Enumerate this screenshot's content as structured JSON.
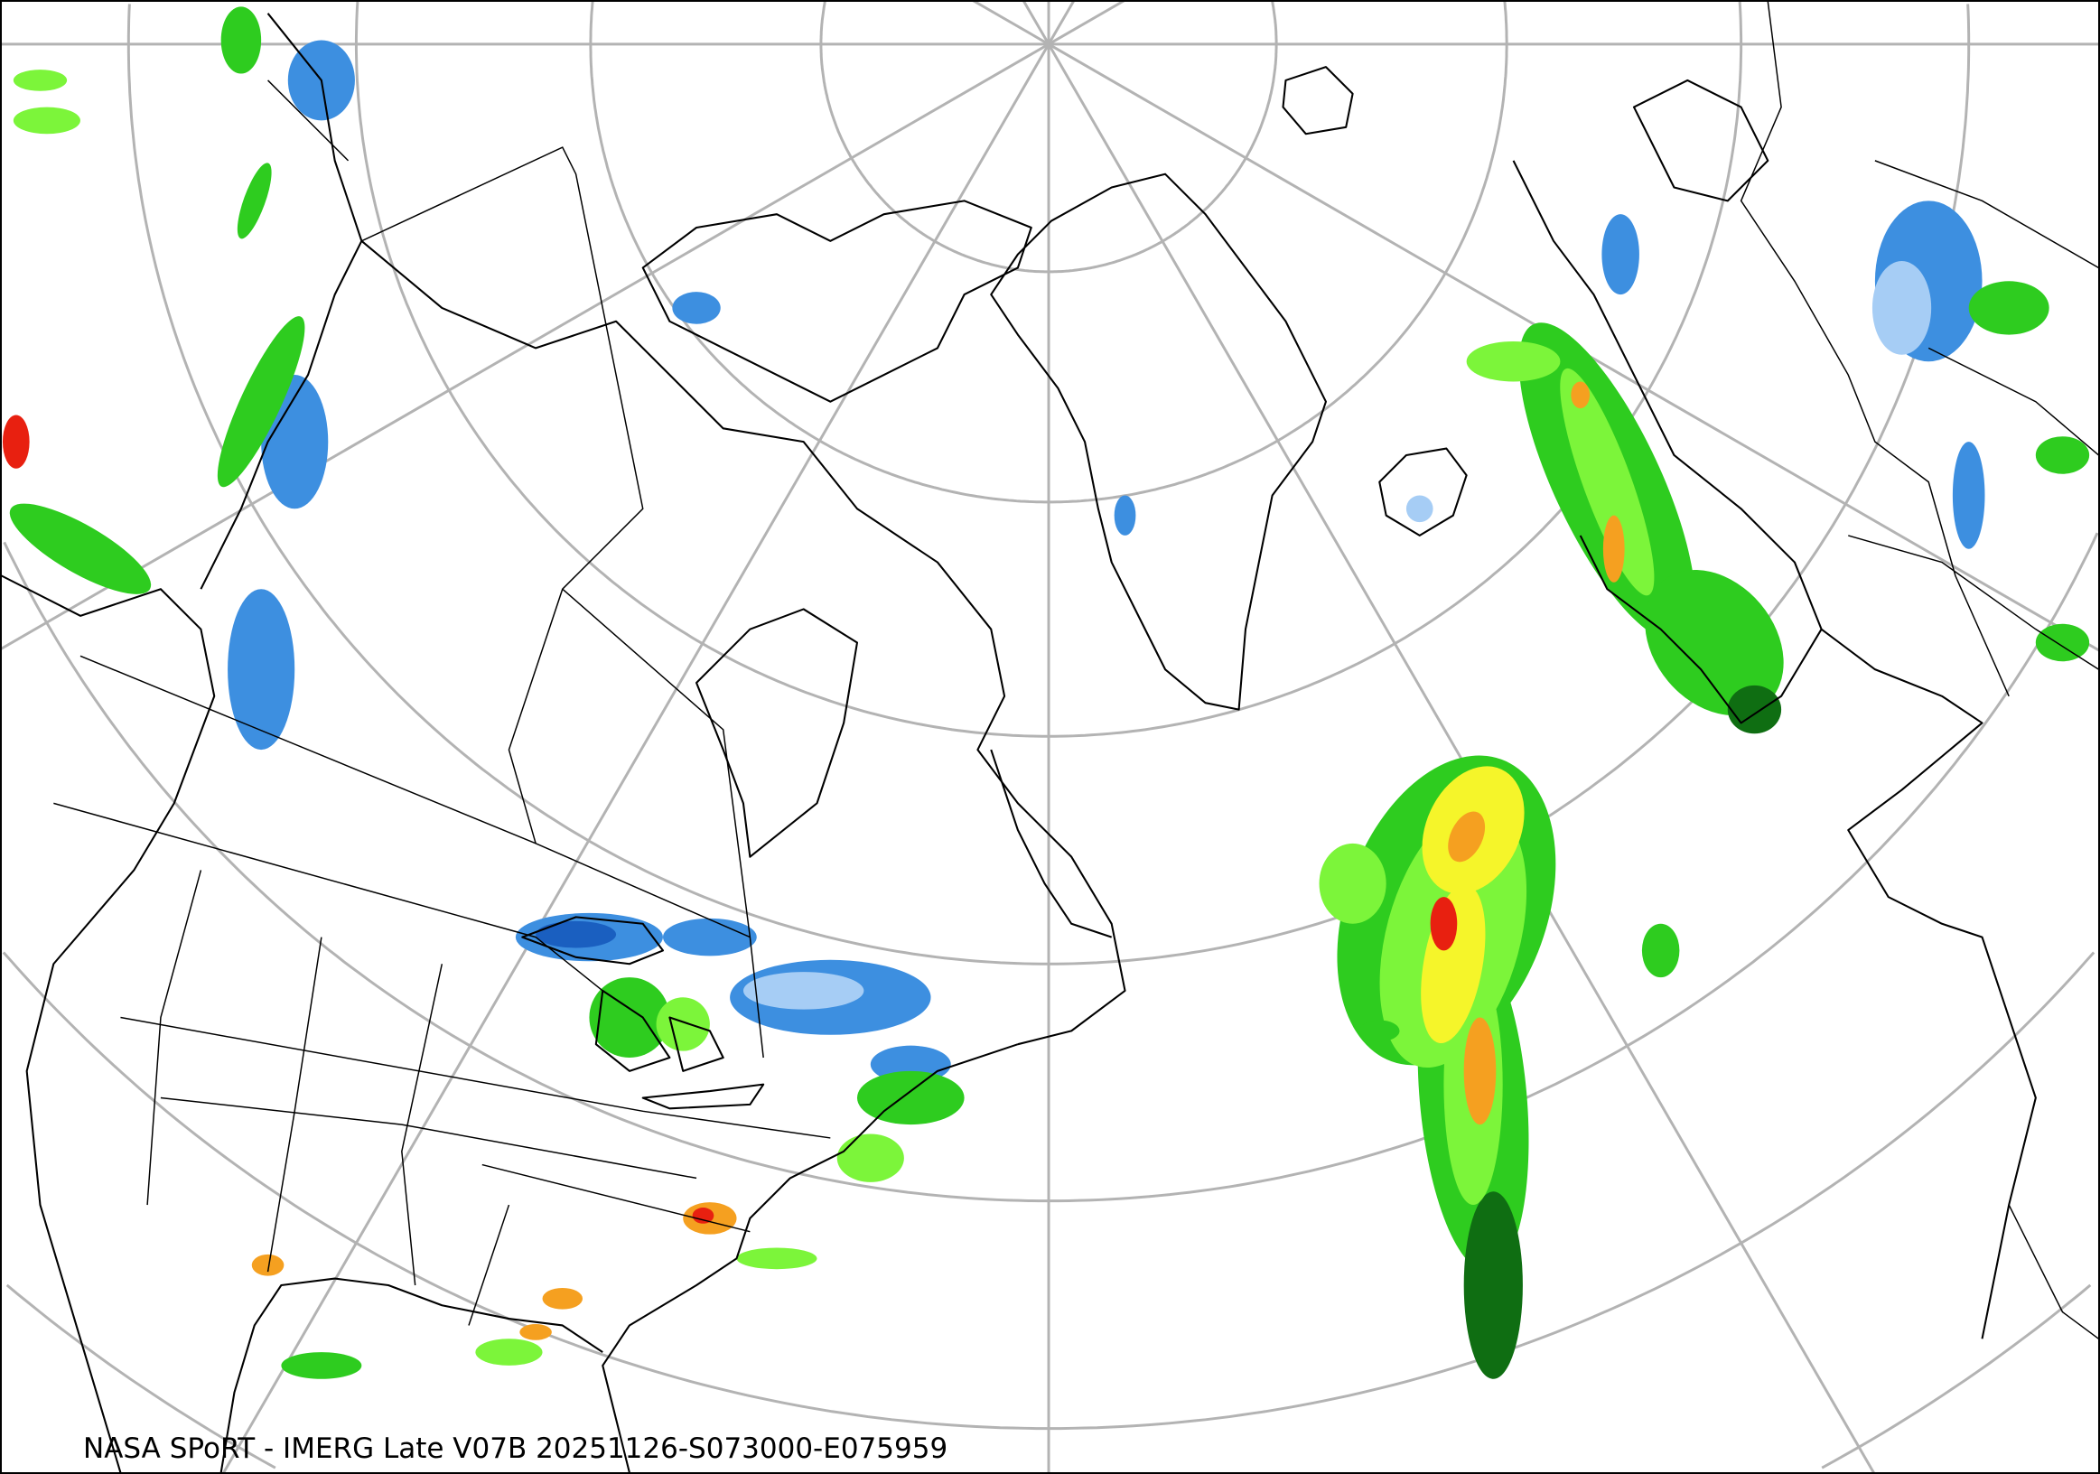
{
  "caption": "NASA SPoRT - IMERG Late V07B 20251126-S073000-E075959",
  "map": {
    "projection": "polar-stereographic",
    "graticule": true,
    "graticule_color": "#b3b3b3",
    "coastline_color": "#000000",
    "precip_colors": {
      "light_snow": "#a6cdf5",
      "snow": "#3d8fe0",
      "heavy_snow": "#1a5fc0",
      "dark_green": "#0f6e12",
      "green": "#2ecc1f",
      "light_green": "#7cf53a",
      "yellow": "#f5f52a",
      "orange": "#f5a020",
      "red": "#e82010",
      "magenta": "#d040d0"
    }
  }
}
